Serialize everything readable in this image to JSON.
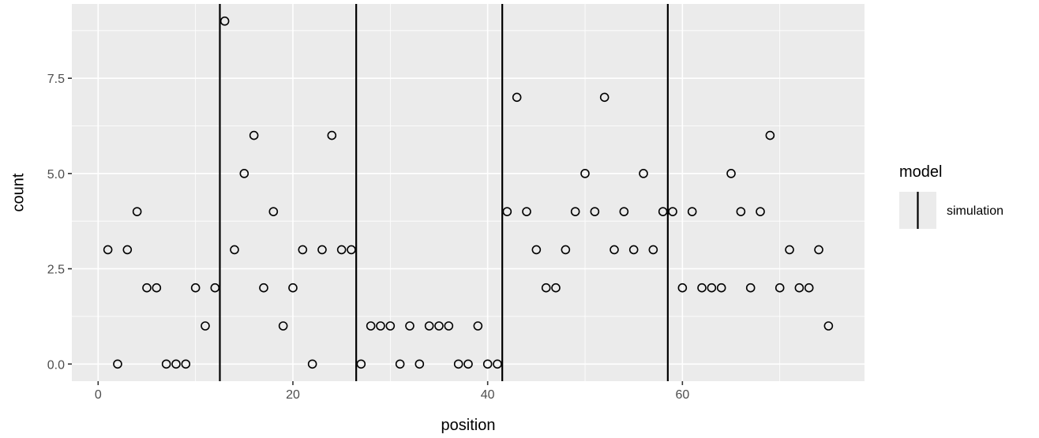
{
  "chart_data": {
    "type": "scatter",
    "xlabel": "position",
    "ylabel": "count",
    "xlim": [
      -2.7,
      78.7
    ],
    "ylim": [
      -0.45,
      9.45
    ],
    "x_ticks": [
      0,
      20,
      40,
      60
    ],
    "x_tick_labels": [
      "0",
      "20",
      "40",
      "60"
    ],
    "y_ticks": [
      0,
      2.5,
      5,
      7.5
    ],
    "y_tick_labels": [
      "0.0",
      "2.5",
      "5.0",
      "7.5"
    ],
    "grid": true,
    "legend": {
      "title": "model",
      "placement": "right",
      "entries": [
        {
          "label": "simulation",
          "glyph": "vertical-line"
        }
      ]
    },
    "series": [
      {
        "marker": "open-circle",
        "x": [
          1,
          2,
          3,
          4,
          5,
          6,
          7,
          8,
          9,
          10,
          11,
          12,
          13,
          14,
          15,
          16,
          17,
          18,
          19,
          20,
          21,
          22,
          23,
          24,
          25,
          26,
          27,
          28,
          29,
          30,
          31,
          32,
          33,
          34,
          35,
          36,
          37,
          38,
          39,
          40,
          41,
          42,
          43,
          44,
          45,
          46,
          47,
          48,
          49,
          50,
          51,
          52,
          53,
          54,
          55,
          56,
          57,
          58,
          59,
          60,
          61,
          62,
          63,
          64,
          65,
          66,
          67,
          68,
          69,
          70,
          71,
          72,
          73,
          74,
          75
        ],
        "y": [
          3,
          0,
          3,
          4,
          2,
          2,
          0,
          0,
          0,
          2,
          1,
          2,
          9,
          3,
          5,
          6,
          2,
          4,
          1,
          2,
          3,
          0,
          3,
          6,
          3,
          3,
          0,
          1,
          1,
          1,
          0,
          1,
          0,
          1,
          1,
          1,
          0,
          0,
          1,
          0,
          0,
          4,
          7,
          4,
          3,
          2,
          2,
          3,
          4,
          5,
          4,
          7,
          3,
          4,
          3,
          5,
          3,
          4,
          4,
          2,
          4,
          2,
          2,
          2,
          5,
          4,
          2,
          4,
          6,
          2,
          3,
          2,
          2,
          3,
          1
        ]
      }
    ],
    "vlines": {
      "name": "simulation",
      "x": [
        12.5,
        26.5,
        41.5,
        58.5
      ],
      "color": "#000000"
    }
  }
}
